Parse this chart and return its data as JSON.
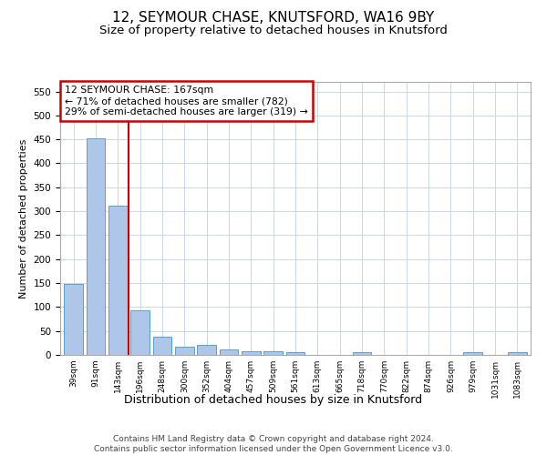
{
  "title": "12, SEYMOUR CHASE, KNUTSFORD, WA16 9BY",
  "subtitle": "Size of property relative to detached houses in Knutsford",
  "xlabel": "Distribution of detached houses by size in Knutsford",
  "ylabel": "Number of detached properties",
  "categories": [
    "39sqm",
    "91sqm",
    "143sqm",
    "196sqm",
    "248sqm",
    "300sqm",
    "352sqm",
    "404sqm",
    "457sqm",
    "509sqm",
    "561sqm",
    "613sqm",
    "665sqm",
    "718sqm",
    "770sqm",
    "822sqm",
    "874sqm",
    "926sqm",
    "979sqm",
    "1031sqm",
    "1083sqm"
  ],
  "values": [
    148,
    452,
    311,
    93,
    38,
    18,
    20,
    11,
    7,
    7,
    5,
    0,
    0,
    5,
    0,
    0,
    0,
    0,
    5,
    0,
    5
  ],
  "bar_color": "#aec6e8",
  "bar_edge_color": "#5a9fd4",
  "vline_x": 2.5,
  "vline_color": "#cc0000",
  "vline_lw": 1.5,
  "annotation_text": "12 SEYMOUR CHASE: 167sqm\n← 71% of detached houses are smaller (782)\n29% of semi-detached houses are larger (319) →",
  "annotation_box_color": "#cc0000",
  "ylim": [
    0,
    570
  ],
  "yticks": [
    0,
    50,
    100,
    150,
    200,
    250,
    300,
    350,
    400,
    450,
    500,
    550
  ],
  "footer": "Contains HM Land Registry data © Crown copyright and database right 2024.\nContains public sector information licensed under the Open Government Licence v3.0.",
  "bg_color": "#ffffff",
  "grid_color": "#c8d8e8",
  "title_fontsize": 11,
  "subtitle_fontsize": 9.5,
  "xlabel_fontsize": 9,
  "ylabel_fontsize": 8,
  "footer_fontsize": 6.5,
  "annot_fontsize": 7.8
}
